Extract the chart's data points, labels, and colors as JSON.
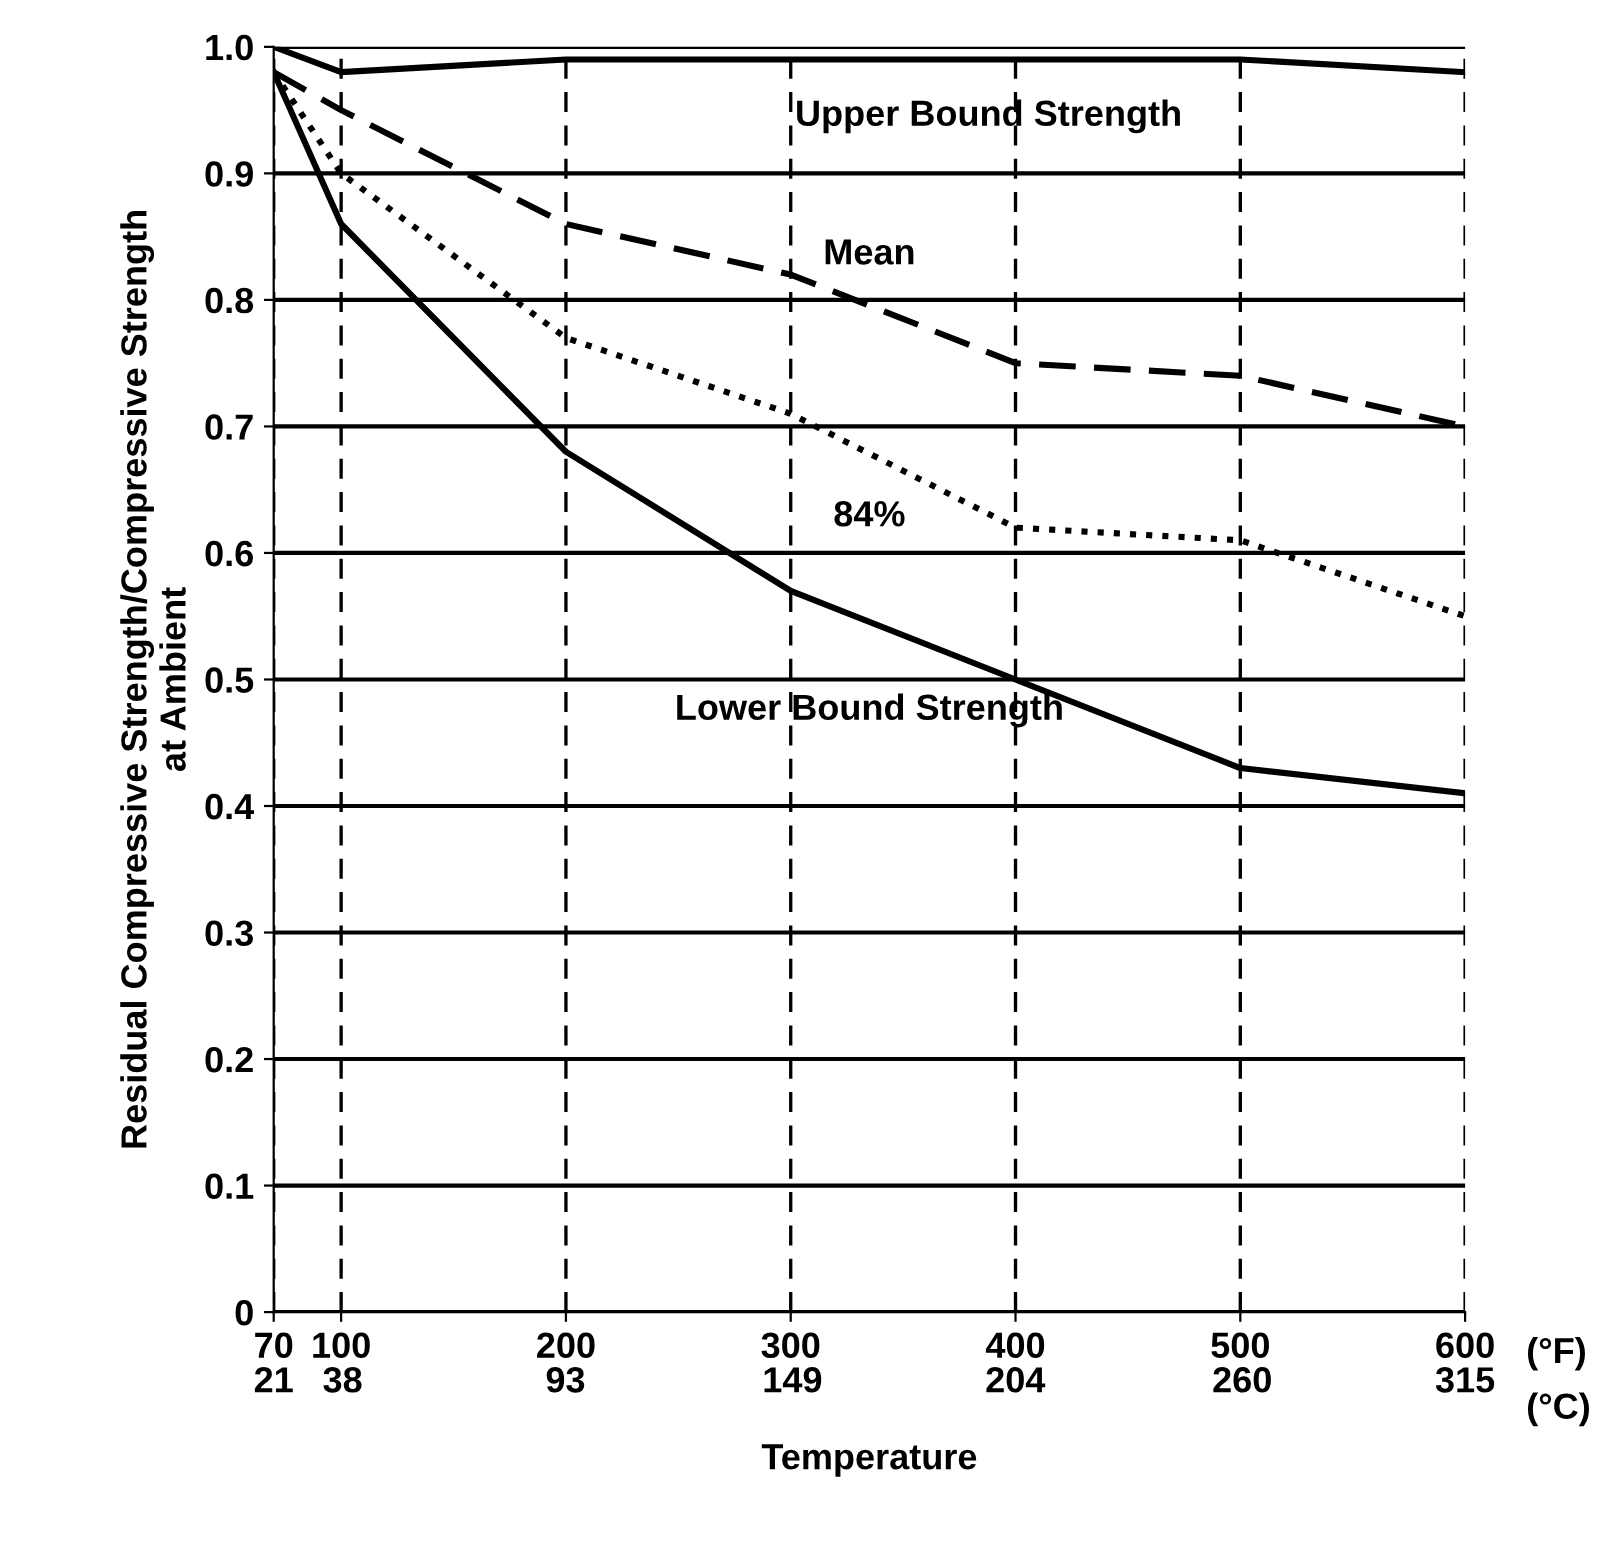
{
  "chart_data": {
    "type": "line",
    "xlabel": "Temperature",
    "ylabel": "Residual Compressive Strength/Compressive Strength\nat Ambient",
    "x": [
      70,
      100,
      200,
      300,
      400,
      500,
      600
    ],
    "xlim": [
      70,
      600
    ],
    "xticks": [
      70,
      100,
      200,
      300,
      400,
      500,
      600
    ],
    "x2lim": [
      21,
      315
    ],
    "x2ticks": [
      21,
      38,
      93,
      149,
      204,
      260,
      315
    ],
    "annotations": [
      "(°F)",
      "(°C)"
    ],
    "ylim": [
      0,
      1.0
    ],
    "yticks": [
      0,
      0.1,
      0.2,
      0.3,
      0.4,
      0.5,
      0.6,
      0.7,
      0.8,
      0.9,
      {
        "value": 1.0,
        "label": "1.0"
      }
    ],
    "grid": true,
    "marker": "none",
    "series": [
      {
        "name": "Upper Bound Strength",
        "color": "#000000",
        "line_style": "solid",
        "values": [
          1.0,
          0.98,
          0.99,
          0.99,
          0.99,
          0.99,
          0.98
        ]
      },
      {
        "name": "Mean",
        "color": "#000000",
        "line_style": "dashed",
        "values": [
          0.98,
          0.95,
          0.86,
          0.82,
          0.75,
          0.74,
          0.7
        ]
      },
      {
        "name": "84%",
        "color": "#000000",
        "line_style": "dotted",
        "values": [
          0.98,
          0.9,
          0.77,
          0.71,
          0.62,
          0.61,
          0.55
        ]
      },
      {
        "name": "Lower Bound Strength",
        "color": "#000000",
        "line_style": "solid",
        "values": [
          0.98,
          0.86,
          0.68,
          0.57,
          0.5,
          0.43,
          0.41
        ]
      }
    ]
  }
}
